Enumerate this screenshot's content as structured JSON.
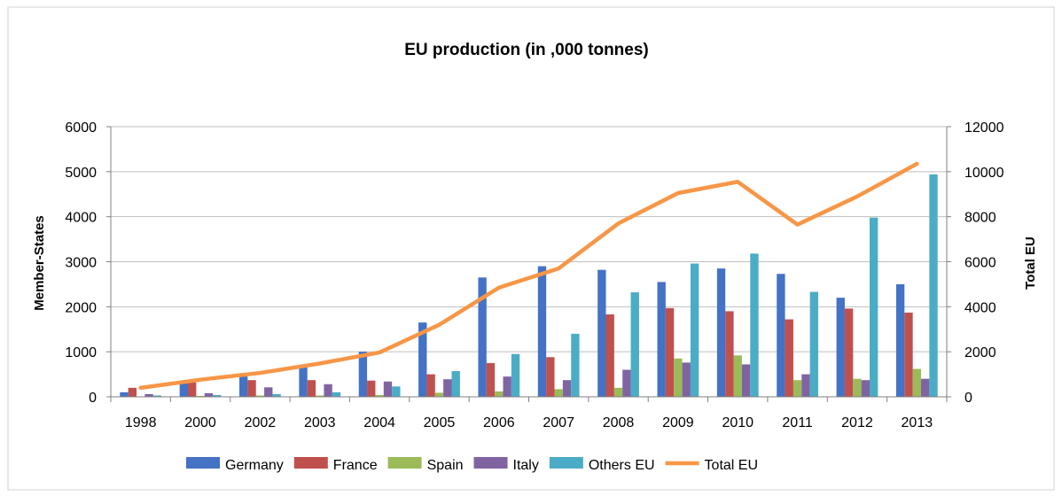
{
  "chart_data": {
    "type": "bar",
    "title": "EU production (in ,000 tonnes)",
    "ylabel": "Member-States",
    "y2label": "Total EU",
    "xlabel": "",
    "ylim": [
      0,
      6000
    ],
    "y2lim": [
      0,
      12000
    ],
    "yticks": [
      "0",
      "1000",
      "2000",
      "3000",
      "4000",
      "5000",
      "6000"
    ],
    "y2ticks": [
      "0",
      "2000",
      "4000",
      "6000",
      "8000",
      "10000",
      "12000"
    ],
    "grid": true,
    "legend_position": "bottom",
    "categories": [
      "1998",
      "2000",
      "2002",
      "2003",
      "2004",
      "2005",
      "2006",
      "2007",
      "2008",
      "2009",
      "2010",
      "2011",
      "2012",
      "2013"
    ],
    "series": [
      {
        "name": "Germany",
        "type": "bar",
        "axis": "left",
        "color": "#4472C4",
        "values": [
          100,
          300,
          450,
          700,
          1000,
          1650,
          2650,
          2900,
          2820,
          2550,
          2850,
          2730,
          2200,
          2500
        ]
      },
      {
        "name": "France",
        "type": "bar",
        "axis": "left",
        "color": "#C0504D",
        "values": [
          200,
          320,
          370,
          370,
          360,
          500,
          750,
          880,
          1830,
          1970,
          1900,
          1720,
          1960,
          1870
        ]
      },
      {
        "name": "Spain",
        "type": "bar",
        "axis": "left",
        "color": "#9BBB59",
        "values": [
          10,
          20,
          30,
          30,
          40,
          90,
          120,
          170,
          200,
          850,
          920,
          370,
          400,
          620
        ]
      },
      {
        "name": "Italy",
        "type": "bar",
        "axis": "left",
        "color": "#8064A2",
        "values": [
          60,
          80,
          210,
          280,
          340,
          390,
          450,
          370,
          600,
          760,
          720,
          500,
          370,
          400
        ]
      },
      {
        "name": "Others EU",
        "type": "bar",
        "axis": "left",
        "color": "#4BACC6",
        "values": [
          30,
          40,
          60,
          100,
          230,
          570,
          950,
          1400,
          2320,
          2960,
          3180,
          2330,
          3980,
          4940
        ]
      },
      {
        "name": "Total EU",
        "type": "line",
        "axis": "right",
        "color": "#F79646",
        "values": [
          400,
          760,
          1060,
          1480,
          1970,
          3200,
          4850,
          5700,
          7700,
          9050,
          9550,
          7650,
          8900,
          10350
        ]
      }
    ]
  }
}
